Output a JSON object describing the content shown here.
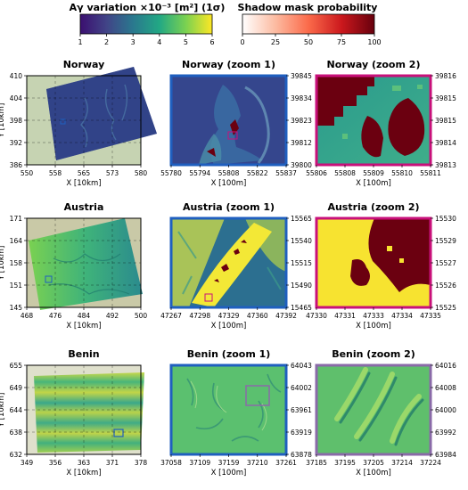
{
  "colorbars": {
    "variation": {
      "label": "Aγ variation ×10⁻³ [m²] (1σ)",
      "ticks": [
        "1",
        "2",
        "3",
        "4",
        "5",
        "6"
      ],
      "stops": [
        "#3b0f70",
        "#414487",
        "#2a788e",
        "#22a884",
        "#7ad151",
        "#fde725"
      ]
    },
    "shadow": {
      "label": "Shadow mask probability",
      "ticks": [
        "0",
        "25",
        "50",
        "75",
        "100"
      ],
      "stops": [
        "#ffffff",
        "#fcbba1",
        "#fb6a4a",
        "#cb181d",
        "#67000d"
      ]
    }
  },
  "chart_data": [
    {
      "type": "heatmap",
      "title": "Norway",
      "xlabel": "X [10km]",
      "ylabel": "Y [10km]",
      "xticks": [
        "550",
        "558",
        "565",
        "573",
        "580"
      ],
      "yticks": [
        "410",
        "404",
        "398",
        "392",
        "386"
      ],
      "xlim": [
        550,
        580
      ],
      "ylim": [
        386,
        410
      ],
      "frame_color": "#000000"
    },
    {
      "type": "heatmap",
      "title": "Norway (zoom 1)",
      "xlabel": "X [100m]",
      "ylabel": "",
      "xticks": [
        "55780",
        "55794",
        "55808",
        "55822",
        "55837"
      ],
      "yticks": [
        "39845",
        "39834",
        "39823",
        "39812",
        "39800"
      ],
      "frame_color": "#1f5fbf"
    },
    {
      "type": "heatmap",
      "title": "Norway (zoom 2)",
      "xlabel": "X [100m]",
      "ylabel": "",
      "xticks": [
        "55806",
        "55808",
        "55809",
        "55810",
        "55811"
      ],
      "yticks": [
        "39816",
        "39815",
        "39815",
        "39814",
        "39813"
      ],
      "frame_color": "#c8107a"
    },
    {
      "type": "heatmap",
      "title": "Austria",
      "xlabel": "X [10km]",
      "ylabel": "Y [10km]",
      "xticks": [
        "468",
        "476",
        "484",
        "492",
        "500"
      ],
      "yticks": [
        "171",
        "164",
        "158",
        "151",
        "145"
      ],
      "xlim": [
        468,
        500
      ],
      "ylim": [
        145,
        171
      ],
      "frame_color": "#000000"
    },
    {
      "type": "heatmap",
      "title": "Austria (zoom 1)",
      "xlabel": "X [100m]",
      "ylabel": "",
      "xticks": [
        "47267",
        "47298",
        "47329",
        "47360",
        "47392"
      ],
      "yticks": [
        "15565",
        "15540",
        "15515",
        "15490",
        "15465"
      ],
      "frame_color": "#1f5fbf"
    },
    {
      "type": "heatmap",
      "title": "Austria (zoom 2)",
      "xlabel": "X [100m]",
      "ylabel": "",
      "xticks": [
        "47330",
        "47331",
        "47333",
        "47334",
        "47335"
      ],
      "yticks": [
        "15530",
        "15529",
        "15527",
        "15526",
        "15525"
      ],
      "frame_color": "#c8107a"
    },
    {
      "type": "heatmap",
      "title": "Benin",
      "xlabel": "X [10km]",
      "ylabel": "Y [10km]",
      "xticks": [
        "349",
        "356",
        "363",
        "371",
        "378"
      ],
      "yticks": [
        "655",
        "649",
        "644",
        "638",
        "632"
      ],
      "xlim": [
        349,
        378
      ],
      "ylim": [
        632,
        655
      ],
      "frame_color": "#000000"
    },
    {
      "type": "heatmap",
      "title": "Benin (zoom 1)",
      "xlabel": "X [100m]",
      "ylabel": "",
      "xticks": [
        "37058",
        "37109",
        "37159",
        "37210",
        "37261"
      ],
      "yticks": [
        "64043",
        "64002",
        "63961",
        "63919",
        "63878"
      ],
      "frame_color": "#1f5fbf"
    },
    {
      "type": "heatmap",
      "title": "Benin (zoom 2)",
      "xlabel": "X [100m]",
      "ylabel": "",
      "xticks": [
        "37185",
        "37195",
        "37205",
        "37214",
        "37224"
      ],
      "yticks": [
        "64016",
        "64008",
        "64000",
        "63992",
        "63984"
      ],
      "frame_color": "#8a6aa8"
    }
  ]
}
